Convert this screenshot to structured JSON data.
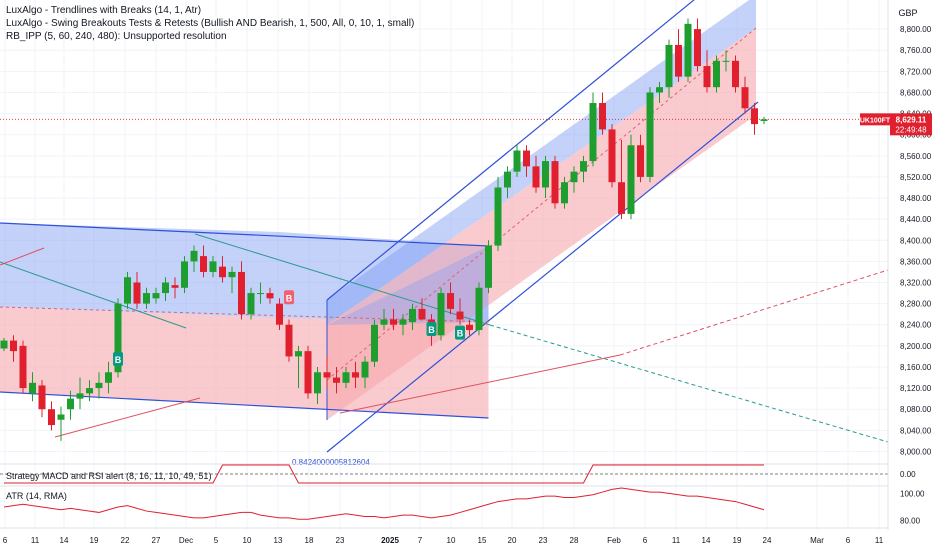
{
  "legend": {
    "line1": "LuxAlgo - Trendlines with Breaks (14, 1, Atr)",
    "line2": "LuxAlgo - Swing Breakouts Tests & Retests (Bullish AND Bearish, 1, 500, All, 0, 10, 1, small)",
    "line3": "RB_IPP (5, 60, 240, 480): Unsupported resolution"
  },
  "currency": "GBP",
  "price_tag": {
    "symbol": "UK100FT",
    "price": "8,629.11",
    "countdown": "22:49:48",
    "value": 8629.11
  },
  "colors": {
    "up": "#089981",
    "up_candle": "#1e9e2e",
    "down": "#e0202e",
    "blue_zone": "#7d9cf5",
    "red_zone": "#f7a8ae",
    "channel_line": "#3050d8",
    "teal_line": "#2b9a8e"
  },
  "main_axis": {
    "min": 7980,
    "max": 8840,
    "ticks": [
      "8,800.00",
      "8,760.00",
      "8,720.00",
      "8,680.00",
      "8,640.00",
      "8,600.00",
      "8,560.00",
      "8,520.00",
      "8,480.00",
      "8,440.00",
      "8,400.00",
      "8,360.00",
      "8,320.00",
      "8,280.00",
      "8,240.00",
      "8,200.00",
      "8,160.00",
      "8,120.00",
      "8,080.00",
      "8,040.00",
      "8,000.00"
    ]
  },
  "x_axis": {
    "labels": [
      "6",
      "11",
      "14",
      "19",
      "22",
      "27",
      "Dec",
      "5",
      "10",
      "13",
      "18",
      "23",
      "2025",
      "7",
      "10",
      "15",
      "20",
      "23",
      "28",
      "Feb",
      "6",
      "11",
      "14",
      "19",
      "24",
      "Mar",
      "6",
      "11"
    ]
  },
  "chart_data": {
    "type": "candlestick",
    "unit": "GBP",
    "candles": [
      [
        8195,
        8215,
        8190,
        8210
      ],
      [
        8210,
        8220,
        8170,
        8190
      ],
      [
        8200,
        8210,
        8110,
        8120
      ],
      [
        8110,
        8150,
        8095,
        8130
      ],
      [
        8125,
        8135,
        8065,
        8080
      ],
      [
        8080,
        8095,
        8040,
        8050
      ],
      [
        8060,
        8085,
        8020,
        8070
      ],
      [
        8080,
        8115,
        8060,
        8100
      ],
      [
        8100,
        8140,
        8080,
        8110
      ],
      [
        8110,
        8135,
        8095,
        8120
      ],
      [
        8120,
        8150,
        8100,
        8130
      ],
      [
        8130,
        8170,
        8110,
        8150
      ],
      [
        8150,
        8290,
        8140,
        8280
      ],
      [
        8280,
        8340,
        8270,
        8330
      ],
      [
        8320,
        8340,
        8270,
        8280
      ],
      [
        8280,
        8310,
        8270,
        8300
      ],
      [
        8290,
        8310,
        8280,
        8300
      ],
      [
        8300,
        8330,
        8285,
        8320
      ],
      [
        8315,
        8330,
        8290,
        8310
      ],
      [
        8310,
        8370,
        8300,
        8360
      ],
      [
        8360,
        8390,
        8340,
        8380
      ],
      [
        8370,
        8390,
        8330,
        8340
      ],
      [
        8340,
        8370,
        8330,
        8360
      ],
      [
        8350,
        8370,
        8320,
        8330
      ],
      [
        8330,
        8350,
        8300,
        8340
      ],
      [
        8340,
        8360,
        8250,
        8260
      ],
      [
        8260,
        8310,
        8250,
        8300
      ],
      [
        8300,
        8320,
        8280,
        8300
      ],
      [
        8300,
        8310,
        8280,
        8290
      ],
      [
        8280,
        8290,
        8230,
        8240
      ],
      [
        8240,
        8250,
        8170,
        8180
      ],
      [
        8180,
        8200,
        8120,
        8190
      ],
      [
        8190,
        8200,
        8100,
        8110
      ],
      [
        8110,
        8160,
        8090,
        8150
      ],
      [
        8150,
        8180,
        8120,
        8140
      ],
      [
        8140,
        8160,
        8110,
        8130
      ],
      [
        8130,
        8160,
        8120,
        8150
      ],
      [
        8150,
        8170,
        8120,
        8140
      ],
      [
        8140,
        8180,
        8120,
        8170
      ],
      [
        8170,
        8250,
        8160,
        8240
      ],
      [
        8240,
        8270,
        8230,
        8250
      ],
      [
        8250,
        8270,
        8230,
        8240
      ],
      [
        8240,
        8260,
        8220,
        8250
      ],
      [
        8245,
        8280,
        8230,
        8270
      ],
      [
        8270,
        8290,
        8250,
        8250
      ],
      [
        8250,
        8260,
        8200,
        8220
      ],
      [
        8220,
        8310,
        8210,
        8300
      ],
      [
        8300,
        8320,
        8260,
        8270
      ],
      [
        8265,
        8290,
        8240,
        8250
      ],
      [
        8240,
        8250,
        8220,
        8230
      ],
      [
        8230,
        8320,
        8220,
        8310
      ],
      [
        8310,
        8400,
        8300,
        8390
      ],
      [
        8390,
        8520,
        8380,
        8500
      ],
      [
        8500,
        8540,
        8480,
        8530
      ],
      [
        8530,
        8580,
        8520,
        8570
      ],
      [
        8570,
        8580,
        8520,
        8540
      ],
      [
        8540,
        8560,
        8490,
        8500
      ],
      [
        8500,
        8560,
        8480,
        8550
      ],
      [
        8550,
        8560,
        8460,
        8470
      ],
      [
        8470,
        8520,
        8460,
        8510
      ],
      [
        8510,
        8540,
        8490,
        8530
      ],
      [
        8530,
        8560,
        8510,
        8550
      ],
      [
        8550,
        8680,
        8540,
        8660
      ],
      [
        8660,
        8680,
        8600,
        8610
      ],
      [
        8610,
        8620,
        8500,
        8510
      ],
      [
        8510,
        8590,
        8440,
        8450
      ],
      [
        8450,
        8600,
        8440,
        8580
      ],
      [
        8580,
        8600,
        8510,
        8520
      ],
      [
        8520,
        8690,
        8510,
        8680
      ],
      [
        8680,
        8700,
        8660,
        8690
      ],
      [
        8690,
        8780,
        8670,
        8770
      ],
      [
        8770,
        8800,
        8700,
        8710
      ],
      [
        8710,
        8820,
        8700,
        8810
      ],
      [
        8800,
        8820,
        8720,
        8730
      ],
      [
        8730,
        8760,
        8680,
        8690
      ],
      [
        8690,
        8750,
        8680,
        8740
      ],
      [
        8740,
        8760,
        8720,
        8740
      ],
      [
        8740,
        8750,
        8680,
        8690
      ],
      [
        8690,
        8710,
        8640,
        8650
      ],
      [
        8650,
        8660,
        8600,
        8620
      ],
      [
        8626,
        8634,
        8620,
        8629
      ]
    ],
    "indicators": {
      "strategy_label": "Strategy MACD and RSI alert (8, 16, 11, 10, 49, 51)",
      "strategy_value": "0.00",
      "atr_label": "ATR (14, RMA)",
      "atr_ticks": [
        "100.00",
        "80.00"
      ],
      "atr_values": [
        90,
        91,
        92,
        91,
        90,
        89,
        88,
        89,
        88,
        87,
        86,
        88,
        90,
        91,
        89,
        87,
        86,
        85,
        84,
        83,
        82,
        82,
        83,
        84,
        85,
        86,
        86,
        84,
        83,
        82,
        82,
        81,
        81,
        82,
        83,
        84,
        85,
        84,
        83,
        83,
        82,
        83,
        84,
        84,
        83,
        82,
        83,
        84,
        86,
        88,
        90,
        92,
        94,
        95,
        96,
        96,
        97,
        98,
        98,
        97,
        97,
        98,
        99,
        101,
        103,
        104,
        103,
        102,
        101,
        101,
        100,
        99,
        98,
        98,
        97,
        96,
        95,
        94,
        92,
        90,
        88
      ],
      "strategy_state": [
        0,
        0,
        0,
        0,
        0,
        0,
        0,
        0,
        0,
        0,
        0,
        0,
        0,
        0,
        0,
        0,
        0,
        0,
        0,
        0,
        0,
        0,
        0,
        1,
        1,
        1,
        1,
        1,
        1,
        1,
        1,
        0,
        0,
        0,
        0,
        0,
        0,
        0,
        0,
        0,
        0,
        0,
        0,
        0,
        0,
        0,
        0,
        0,
        0,
        0,
        0,
        0,
        0,
        0,
        0,
        0,
        0,
        0,
        0,
        0,
        0,
        0,
        1,
        1,
        1,
        1,
        1,
        1,
        1,
        1,
        1,
        1,
        1,
        1,
        1,
        1,
        1,
        1,
        1,
        1,
        1
      ]
    },
    "signals": [
      {
        "label": "B",
        "type": "buy",
        "index": 12,
        "price": 8175
      },
      {
        "label": "B",
        "type": "sell",
        "index": 30,
        "price": 8292
      },
      {
        "label": "B",
        "type": "buy",
        "index": 45,
        "price": 8232
      },
      {
        "label": "B",
        "type": "buy",
        "index": 48,
        "price": 8225
      }
    ],
    "annotation": "0.8424000005812604"
  }
}
